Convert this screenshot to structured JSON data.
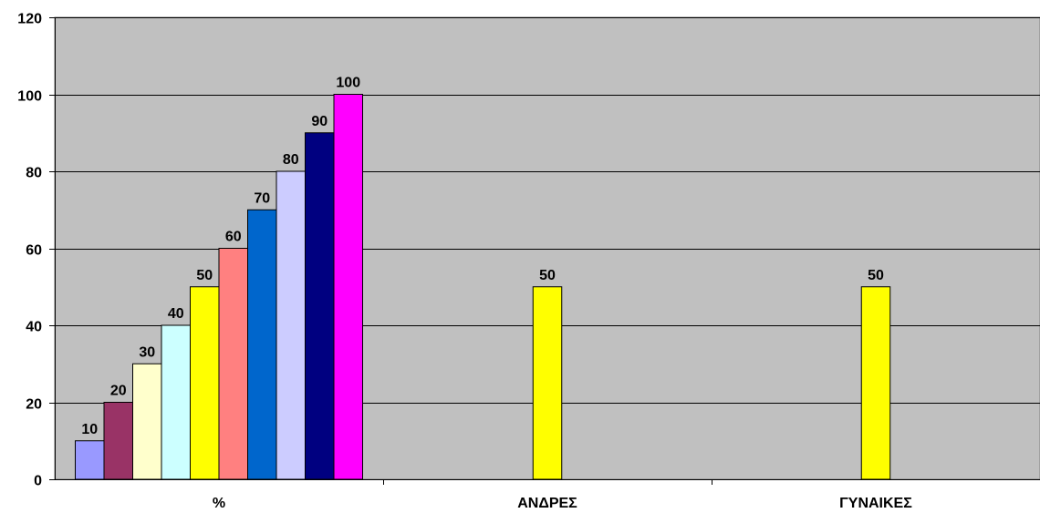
{
  "chart_data": {
    "type": "bar",
    "categories": [
      "%",
      "ΑΝΔΡΕΣ",
      "ΓΥΝΑΙΚΕΣ"
    ],
    "series": [
      {
        "values": [
          10,
          null,
          null
        ],
        "color": "#9999ff"
      },
      {
        "values": [
          20,
          null,
          null
        ],
        "color": "#993366"
      },
      {
        "values": [
          30,
          null,
          null
        ],
        "color": "#ffffcc"
      },
      {
        "values": [
          40,
          null,
          null
        ],
        "color": "#ccffff"
      },
      {
        "values": [
          50,
          50,
          50
        ],
        "color": "#ffff00"
      },
      {
        "values": [
          60,
          null,
          null
        ],
        "color": "#ff8080"
      },
      {
        "values": [
          70,
          null,
          null
        ],
        "color": "#0066cc"
      },
      {
        "values": [
          80,
          null,
          null
        ],
        "color": "#ccccff"
      },
      {
        "values": [
          90,
          null,
          null
        ],
        "color": "#000080"
      },
      {
        "values": [
          100,
          null,
          null
        ],
        "color": "#ff00ff"
      }
    ],
    "ylim": [
      0,
      120
    ],
    "yticks": [
      0,
      20,
      40,
      60,
      80,
      100,
      120
    ],
    "grid": true,
    "legend": "none",
    "plot_background": "#c0c0c0"
  }
}
